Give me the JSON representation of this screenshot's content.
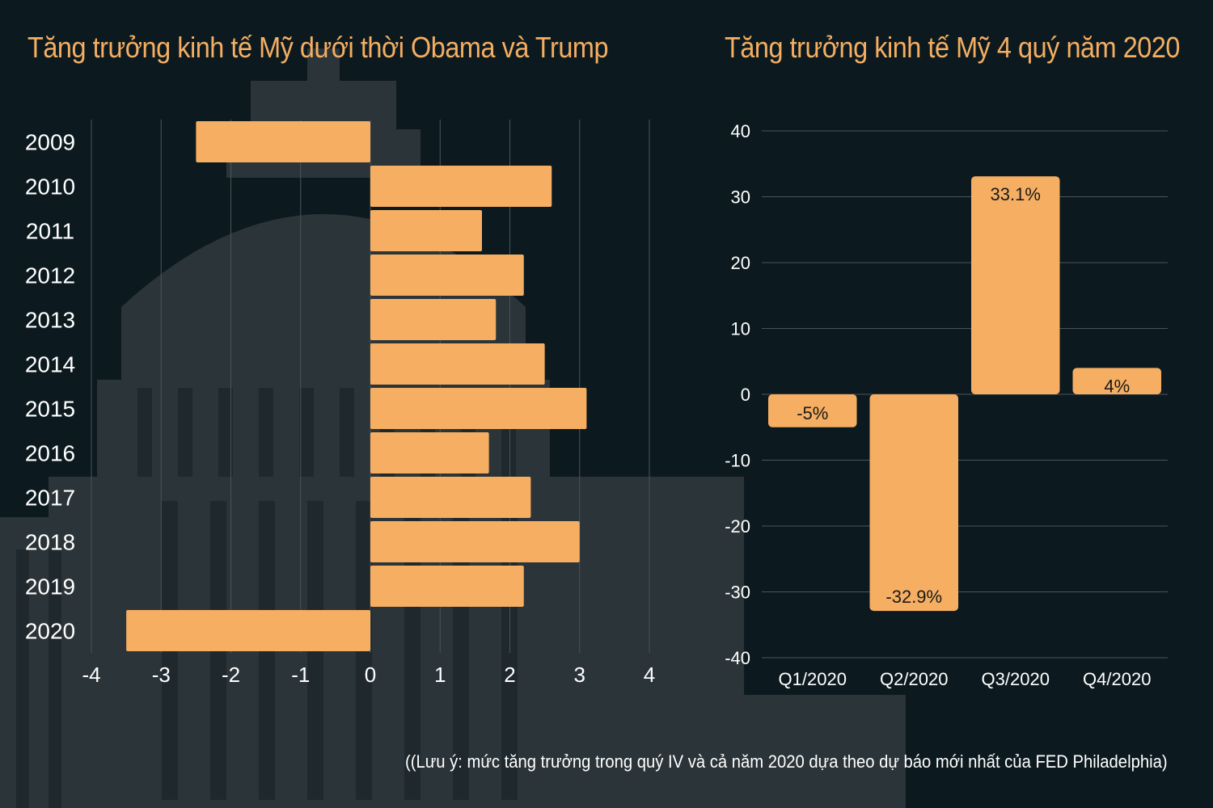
{
  "colors": {
    "background": "#0c1a20",
    "accent": "#f5ae62",
    "text": "#ffffff",
    "grid": "#4a5458"
  },
  "background_image": {
    "icon": "capitol-building-silhouette"
  },
  "footnote": "((Lưu ý: mức tăng trưởng  trong quý IV và cả năm 2020 dựa theo dự báo mới nhất của FED Philadelphia)",
  "chart_data": [
    {
      "type": "bar",
      "orientation": "horizontal",
      "title": "Tăng trưởng kinh tế Mỹ dưới thời Obama và Trump",
      "categories": [
        "2009",
        "2010",
        "2011",
        "2012",
        "2013",
        "2014",
        "2015",
        "2016",
        "2017",
        "2018",
        "2019",
        "2020"
      ],
      "values": [
        -2.5,
        2.6,
        1.6,
        2.2,
        1.8,
        2.5,
        3.1,
        1.7,
        2.3,
        3.0,
        2.2,
        -3.5
      ],
      "xlim": [
        -4,
        4
      ],
      "xticks": [
        "-4",
        "-3",
        "-2",
        "-1",
        "0",
        "1",
        "2",
        "3",
        "4"
      ],
      "grid": true
    },
    {
      "type": "bar",
      "orientation": "vertical",
      "title": "Tăng trưởng kinh tế Mỹ 4 quý năm 2020",
      "categories": [
        "Q1/2020",
        "Q2/2020",
        "Q3/2020",
        "Q4/2020"
      ],
      "values": [
        -5,
        -32.9,
        33.1,
        4
      ],
      "data_labels": [
        "-5%",
        "-32.9%",
        "33.1%",
        "4%"
      ],
      "ylim": [
        -40,
        40
      ],
      "yticks": [
        "40",
        "30",
        "20",
        "10",
        "0",
        "-10",
        "-20",
        "-30",
        "-40"
      ],
      "grid": true
    }
  ]
}
